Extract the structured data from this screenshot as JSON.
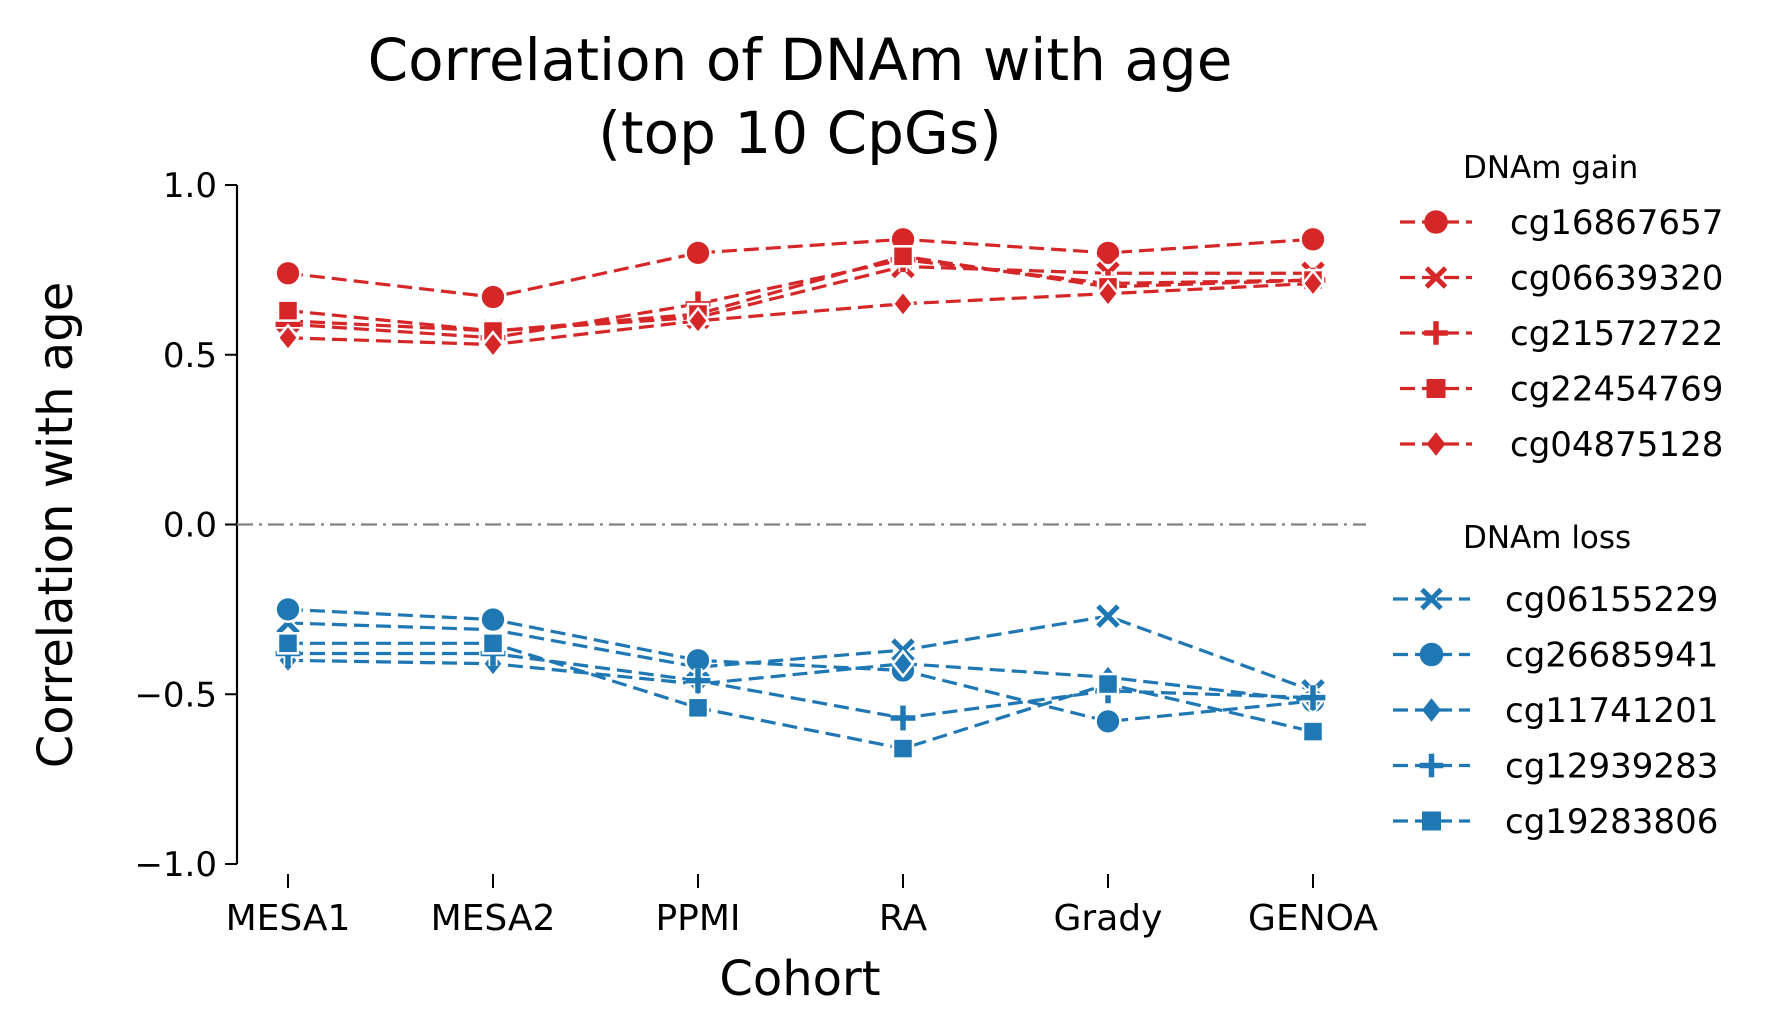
{
  "chart_data": {
    "type": "line",
    "title_line1": "Correlation of DNAm with age",
    "title_line2": "(top 10 CpGs)",
    "xlabel": "Cohort",
    "ylabel": "Correlation with age",
    "categories": [
      "MESA1",
      "MESA2",
      "PPMI",
      "RA",
      "Grady",
      "GENOA"
    ],
    "ylim": [
      -1.0,
      1.0
    ],
    "yticks": [
      {
        "value": 1.0,
        "label": "1.0"
      },
      {
        "value": 0.5,
        "label": "0.5"
      },
      {
        "value": 0.0,
        "label": "0.0"
      },
      {
        "value": -0.5,
        "label": "−0.5"
      },
      {
        "value": -1.0,
        "label": "−1.0"
      }
    ],
    "reference_line": {
      "y": 0.0,
      "style": "dash-dot",
      "color": "#808080"
    },
    "grid": false,
    "legend_placement": "outside-right",
    "groups": [
      {
        "title": "DNAm gain",
        "color": "#d62728",
        "series": [
          {
            "name": "cg16867657",
            "marker": "circle",
            "values": [
              0.74,
              0.67,
              0.8,
              0.84,
              0.8,
              0.84
            ]
          },
          {
            "name": "cg06639320",
            "marker": "x",
            "values": [
              0.6,
              0.57,
              0.61,
              0.76,
              0.74,
              0.74
            ]
          },
          {
            "name": "cg21572722",
            "marker": "plus",
            "values": [
              0.59,
              0.55,
              0.65,
              0.78,
              0.71,
              0.72
            ]
          },
          {
            "name": "cg22454769",
            "marker": "square",
            "values": [
              0.63,
              0.57,
              0.62,
              0.79,
              0.7,
              0.72
            ]
          },
          {
            "name": "cg04875128",
            "marker": "diamond",
            "values": [
              0.55,
              0.53,
              0.6,
              0.65,
              0.68,
              0.71
            ]
          }
        ]
      },
      {
        "title": "DNAm loss",
        "color": "#1f77b4",
        "series": [
          {
            "name": "cg06155229",
            "marker": "x",
            "values": [
              -0.29,
              -0.31,
              -0.42,
              -0.37,
              -0.27,
              -0.49
            ]
          },
          {
            "name": "cg26685941",
            "marker": "circle",
            "values": [
              -0.25,
              -0.28,
              -0.4,
              -0.43,
              -0.58,
              -0.52
            ]
          },
          {
            "name": "cg11741201",
            "marker": "diamond",
            "values": [
              -0.4,
              -0.41,
              -0.47,
              -0.41,
              -0.45,
              -0.52
            ]
          },
          {
            "name": "cg12939283",
            "marker": "plus",
            "values": [
              -0.38,
              -0.38,
              -0.46,
              -0.57,
              -0.49,
              -0.51
            ]
          },
          {
            "name": "cg19283806",
            "marker": "square",
            "values": [
              -0.35,
              -0.35,
              -0.54,
              -0.66,
              -0.47,
              -0.61
            ]
          }
        ]
      }
    ]
  }
}
